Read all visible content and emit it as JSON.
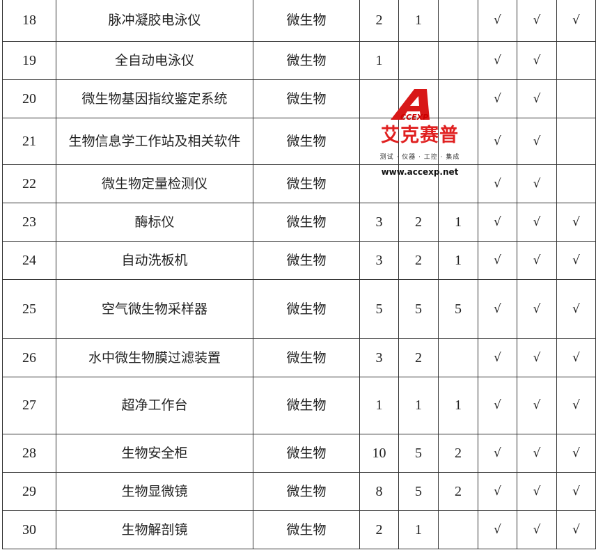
{
  "table": {
    "rows": [
      {
        "no": "18",
        "name": "脉冲凝胶电泳仪",
        "category": "微生物",
        "c1": "2",
        "c2": "1",
        "c3": "",
        "m1": "√",
        "m2": "√",
        "m3": "√"
      },
      {
        "no": "19",
        "name": "全自动电泳仪",
        "category": "微生物",
        "c1": "1",
        "c2": "",
        "c3": "",
        "m1": "√",
        "m2": "√",
        "m3": ""
      },
      {
        "no": "20",
        "name": "微生物基因指纹鉴定系统",
        "category": "微生物",
        "c1": "",
        "c2": "",
        "c3": "",
        "m1": "√",
        "m2": "√",
        "m3": ""
      },
      {
        "no": "21",
        "name": "生物信息学工作站及相关软件",
        "category": "微生物",
        "c1": "",
        "c2": "",
        "c3": "",
        "m1": "√",
        "m2": "√",
        "m3": ""
      },
      {
        "no": "22",
        "name": "微生物定量检测仪",
        "category": "微生物",
        "c1": "",
        "c2": "",
        "c3": "",
        "m1": "√",
        "m2": "√",
        "m3": ""
      },
      {
        "no": "23",
        "name": "酶标仪",
        "category": "微生物",
        "c1": "3",
        "c2": "2",
        "c3": "1",
        "m1": "√",
        "m2": "√",
        "m3": "√"
      },
      {
        "no": "24",
        "name": "自动洗板机",
        "category": "微生物",
        "c1": "3",
        "c2": "2",
        "c3": "1",
        "m1": "√",
        "m2": "√",
        "m3": "√"
      },
      {
        "no": "25",
        "name": "空气微生物采样器",
        "category": "微生物",
        "c1": "5",
        "c2": "5",
        "c3": "5",
        "m1": "√",
        "m2": "√",
        "m3": "√"
      },
      {
        "no": "26",
        "name": "水中微生物膜过滤装置",
        "category": "微生物",
        "c1": "3",
        "c2": "2",
        "c3": "",
        "m1": "√",
        "m2": "√",
        "m3": "√"
      },
      {
        "no": "27",
        "name": "超净工作台",
        "category": "微生物",
        "c1": "1",
        "c2": "1",
        "c3": "1",
        "m1": "√",
        "m2": "√",
        "m3": "√"
      },
      {
        "no": "28",
        "name": "生物安全柜",
        "category": "微生物",
        "c1": "10",
        "c2": "5",
        "c3": "2",
        "m1": "√",
        "m2": "√",
        "m3": "√"
      },
      {
        "no": "29",
        "name": "生物显微镜",
        "category": "微生物",
        "c1": "8",
        "c2": "5",
        "c3": "2",
        "m1": "√",
        "m2": "√",
        "m3": "√"
      },
      {
        "no": "30",
        "name": "生物解剖镜",
        "category": "微生物",
        "c1": "2",
        "c2": "1",
        "c3": "",
        "m1": "√",
        "m2": "√",
        "m3": "√"
      }
    ]
  },
  "watermark": {
    "logo_text": "ACCEXP",
    "brand": "艾克赛普",
    "tagline": "测试 · 仪器 · 工控 · 集成",
    "url": "www.accexp.net",
    "color": "#e02020"
  }
}
